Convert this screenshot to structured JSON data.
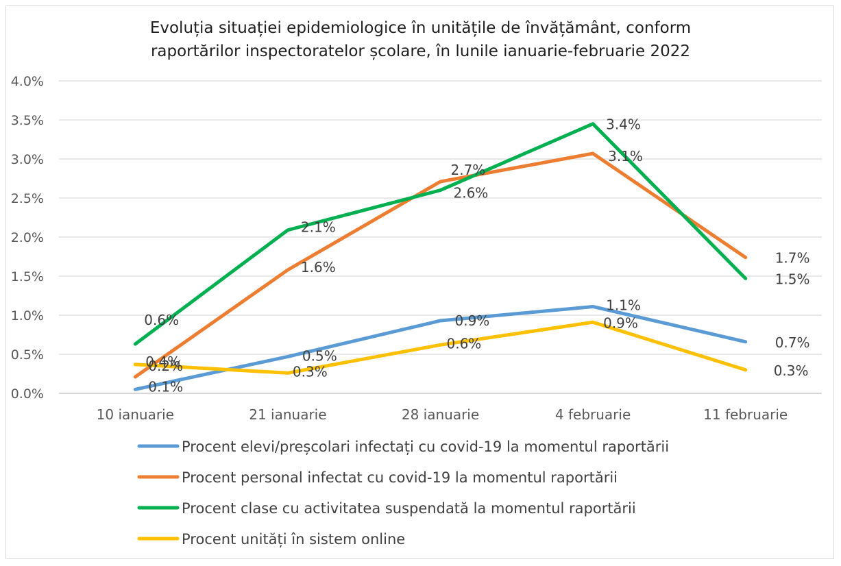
{
  "chart_data": {
    "type": "line",
    "title": "Evoluția situației epidemiologice în unitățile de învățământ, conform raportărilor inspectoratelor școlare, în lunile ianuarie-februarie 2022",
    "title_lines": [
      "Evoluția situației epidemiologice în unitățile de învățământ, conform",
      "raportărilor inspectoratelor școlare, în lunile ianuarie-februarie 2022"
    ],
    "categories": [
      "10 ianuarie",
      "21 ianuarie",
      "28 ianuarie",
      "4 februarie",
      "11 februarie"
    ],
    "y_ticks": [
      "0.0%",
      "0.5%",
      "1.0%",
      "1.5%",
      "2.0%",
      "2.5%",
      "3.0%",
      "3.5%",
      "4.0%"
    ],
    "ylim": [
      0,
      4
    ],
    "y_unit": "%",
    "grid": true,
    "legend_position": "bottom",
    "series": [
      {
        "name": "Procent elevi/preșcolari infectați cu covid-19 la momentul raportării",
        "color": "#5b9bd5",
        "values": [
          0.05,
          0.47,
          0.93,
          1.11,
          0.66
        ],
        "labels": [
          "0.1%",
          "0.5%",
          "0.9%",
          "1.1%",
          "0.7%"
        ]
      },
      {
        "name": "Procent personal infectat cu covid-19 la momentul raportării",
        "color": "#ed7d31",
        "values": [
          0.21,
          1.58,
          2.71,
          3.07,
          1.74
        ],
        "labels": [
          "0.2%",
          "1.6%",
          "2.7%",
          "3.1%",
          "1.7%"
        ]
      },
      {
        "name": "Procent clase cu activitatea suspendată la momentul raportării",
        "color": "#00b050",
        "values": [
          0.63,
          2.09,
          2.6,
          3.45,
          1.47
        ],
        "labels": [
          "0.6%",
          "2.1%",
          "2.6%",
          "3.4%",
          "1.5%"
        ]
      },
      {
        "name": "Procent unități în sistem online",
        "color": "#ffc000",
        "values": [
          0.37,
          0.26,
          0.62,
          0.91,
          0.3
        ],
        "labels": [
          "0.4%",
          "0.3%",
          "0.6%",
          "0.9%",
          "0.3%"
        ]
      }
    ]
  }
}
